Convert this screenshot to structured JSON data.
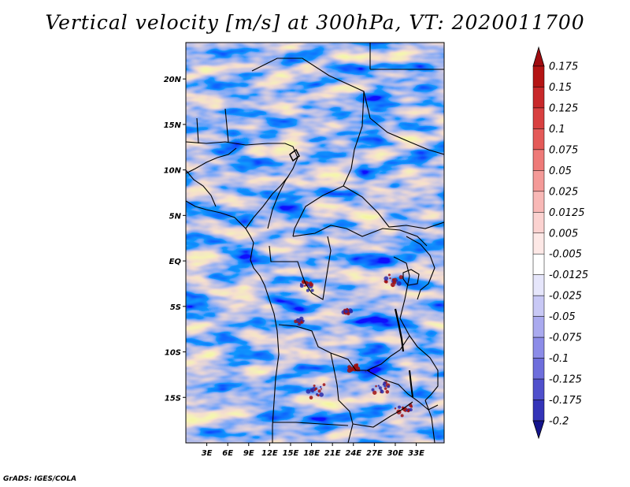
{
  "title": "Vertical velocity [m/s] at 300hPa, VT: 2020011700",
  "credit": "GrADS: IGES/COLA",
  "map": {
    "lon_range": [
      0,
      37
    ],
    "lat_range": [
      -20,
      24
    ],
    "x_ticks": [
      {
        "lon": 3,
        "label": "3E"
      },
      {
        "lon": 6,
        "label": "6E"
      },
      {
        "lon": 9,
        "label": "9E"
      },
      {
        "lon": 12,
        "label": "12E"
      },
      {
        "lon": 15,
        "label": "15E"
      },
      {
        "lon": 18,
        "label": "18E"
      },
      {
        "lon": 21,
        "label": "21E"
      },
      {
        "lon": 24,
        "label": "24E"
      },
      {
        "lon": 27,
        "label": "27E"
      },
      {
        "lon": 30,
        "label": "30E"
      },
      {
        "lon": 33,
        "label": "33E"
      }
    ],
    "y_ticks": [
      {
        "lat": 20,
        "label": "20N"
      },
      {
        "lat": 15,
        "label": "15N"
      },
      {
        "lat": 10,
        "label": "10N"
      },
      {
        "lat": 5,
        "label": "5N"
      },
      {
        "lat": 0,
        "label": "EQ"
      },
      {
        "lat": -5,
        "label": "5S"
      },
      {
        "lat": -10,
        "label": "10S"
      },
      {
        "lat": -15,
        "label": "15S"
      }
    ]
  },
  "colorbar": {
    "levels": [
      {
        "label": "0.175",
        "color": "#b41414"
      },
      {
        "label": "0.15",
        "color": "#c8282a"
      },
      {
        "label": "0.125",
        "color": "#d84040"
      },
      {
        "label": "0.1",
        "color": "#e45a58"
      },
      {
        "label": "0.075",
        "color": "#ee7a78"
      },
      {
        "label": "0.05",
        "color": "#f49a98"
      },
      {
        "label": "0.025",
        "color": "#f8b8b6"
      },
      {
        "label": "0.0125",
        "color": "#fbd2d0"
      },
      {
        "label": "0.005",
        "color": "#fde8e6"
      },
      {
        "label": "-0.005",
        "color": "#ffffff"
      },
      {
        "label": "-0.0125",
        "color": "#e6e6fb"
      },
      {
        "label": "-0.025",
        "color": "#c8c8f5"
      },
      {
        "label": "-0.05",
        "color": "#aaaaef"
      },
      {
        "label": "-0.075",
        "color": "#8c8ce8"
      },
      {
        "label": "-0.1",
        "color": "#6e6edc"
      },
      {
        "label": "-0.125",
        "color": "#5050cc"
      },
      {
        "label": "-0.175",
        "color": "#3434b8"
      },
      {
        "label": "-0.2",
        "color": "#2020a0"
      }
    ],
    "top_triangle_color": "#a00c10",
    "bottom_triangle_color": "#14148c"
  }
}
